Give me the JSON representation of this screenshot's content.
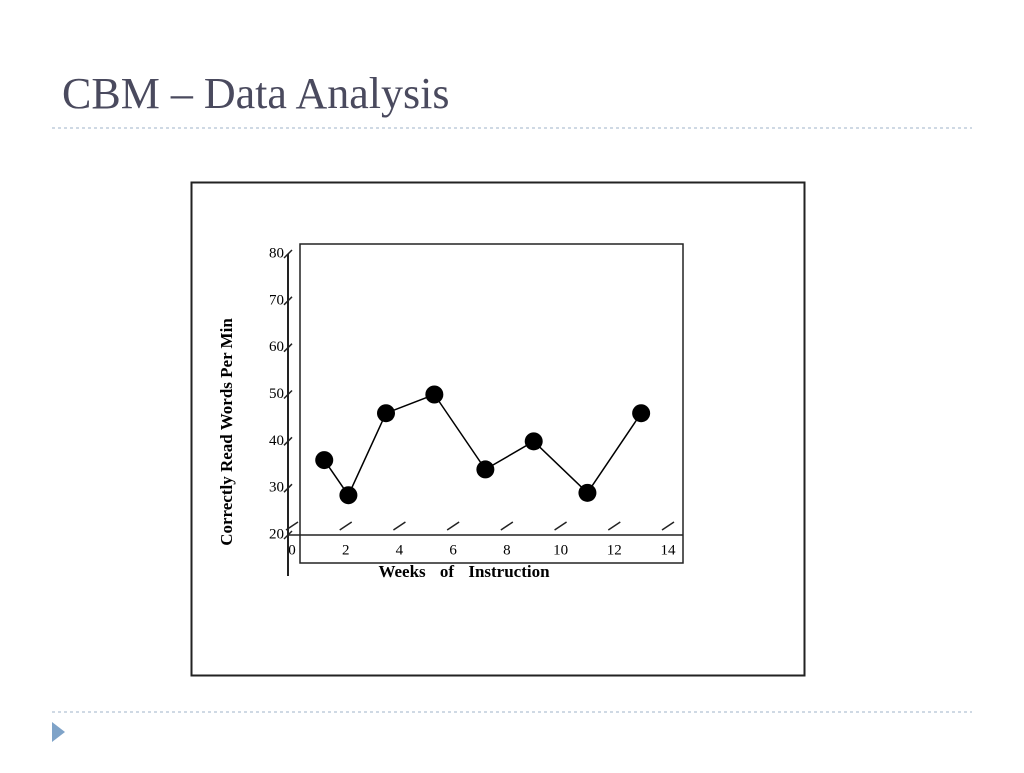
{
  "slide_title": "CBM – Data Analysis",
  "chart_data": {
    "type": "line",
    "y_label": "Correctly Read Words Per Min",
    "x_label": "Weeks of Instruction",
    "x": [
      1.2,
      2.1,
      3.5,
      5.3,
      7.2,
      9,
      11,
      13
    ],
    "series": [
      {
        "color": "#000000",
        "values": [
          36,
          28.5,
          46,
          50,
          34,
          40,
          29,
          46
        ]
      }
    ],
    "xlim": [
      0,
      14
    ],
    "xticks": [
      0,
      2,
      4,
      6,
      8,
      10,
      12,
      14
    ],
    "ylim": [
      20,
      80
    ],
    "yticks": [
      20,
      30,
      40,
      50,
      60,
      70,
      80
    ],
    "grid": false
  }
}
